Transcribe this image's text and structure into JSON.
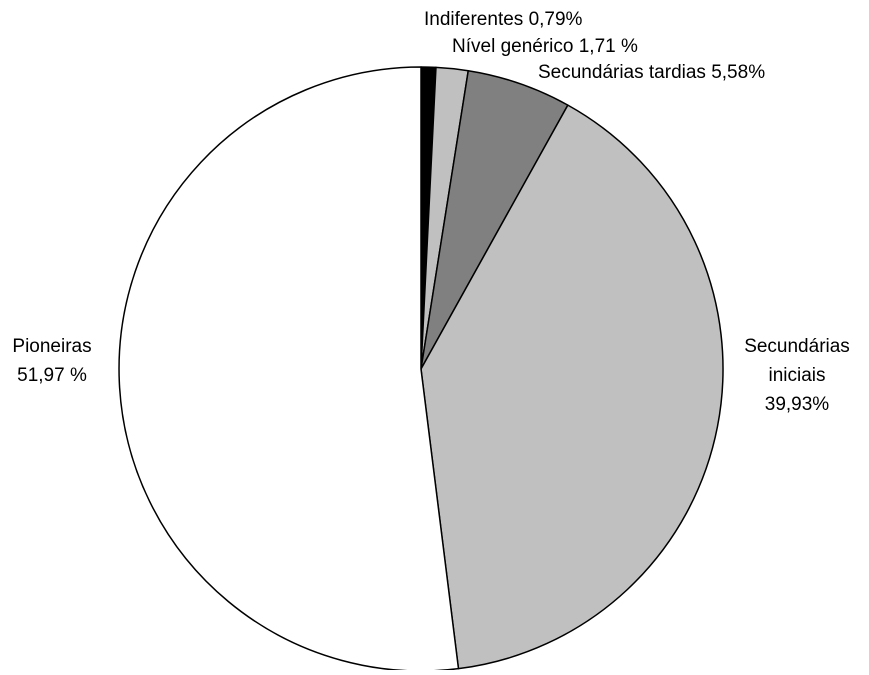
{
  "chart_data": {
    "type": "pie",
    "title": "",
    "start": "top",
    "direction": "clockwise",
    "slices": [
      {
        "name": "Indiferentes",
        "value": 0.79,
        "color": "#000000",
        "label_lines": [
          "Indiferentes 0,79%"
        ]
      },
      {
        "name": "Nível genérico",
        "value": 1.71,
        "color": "#c0c0c0",
        "label_lines": [
          "Nível genérico 1,71 %"
        ]
      },
      {
        "name": "Secundárias tardias",
        "value": 5.58,
        "color": "#808080",
        "label_lines": [
          "Secundárias tardias 5,58%"
        ]
      },
      {
        "name": "Secundárias iniciais",
        "value": 39.93,
        "color": "#c0c0c0",
        "label_lines": [
          "Secundárias",
          "iniciais",
          "39,93%"
        ]
      },
      {
        "name": "Pioneiras",
        "value": 51.97,
        "color": "#ffffff",
        "label_lines": [
          "Pioneiras",
          "51,97 %"
        ]
      }
    ]
  }
}
